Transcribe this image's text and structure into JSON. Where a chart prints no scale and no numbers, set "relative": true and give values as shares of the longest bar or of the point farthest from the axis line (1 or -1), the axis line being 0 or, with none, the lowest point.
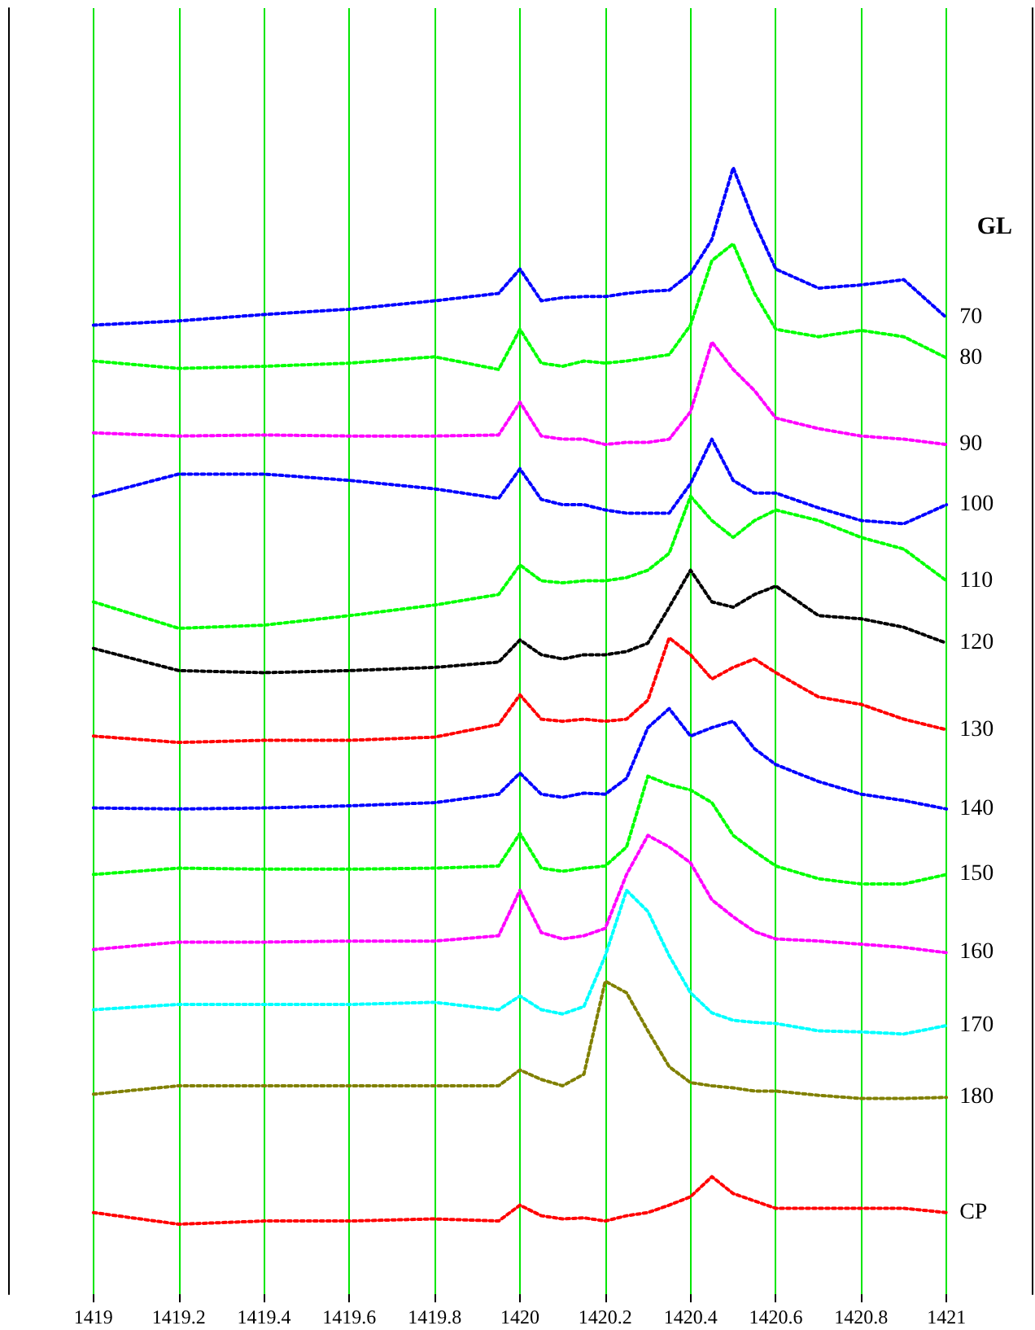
{
  "chart_data": {
    "type": "line",
    "relative": true,
    "legend_title": "GL",
    "line_style": "dotted",
    "grid": "x",
    "xlim": [
      1418.8,
      1421.2
    ],
    "xticks": [
      1419,
      1419.2,
      1419.4,
      1419.6,
      1419.8,
      1420,
      1420.2,
      1420.4,
      1420.6,
      1420.8,
      1421
    ],
    "x": [
      1419,
      1419.2,
      1419.4,
      1419.6,
      1419.8,
      1419.95,
      1420,
      1420.05,
      1420.1,
      1420.15,
      1420.2,
      1420.25,
      1420.3,
      1420.35,
      1420.4,
      1420.45,
      1420.5,
      1420.55,
      1420.6,
      1420.7,
      1420.8,
      1420.9,
      1421
    ],
    "series": [
      {
        "name": "70",
        "color": "#0000ff",
        "values": [
          0.851,
          0.855,
          0.861,
          0.866,
          0.874,
          0.881,
          0.904,
          0.874,
          0.877,
          0.878,
          0.878,
          0.881,
          0.883,
          0.884,
          0.9,
          0.932,
          1,
          0.948,
          0.904,
          0.886,
          0.889,
          0.894,
          0.858
        ]
      },
      {
        "name": "80",
        "color": "#00ff00",
        "values": [
          0.817,
          0.81,
          0.812,
          0.815,
          0.821,
          0.809,
          0.847,
          0.815,
          0.812,
          0.817,
          0.815,
          0.817,
          0.82,
          0.823,
          0.851,
          0.912,
          0.928,
          0.881,
          0.847,
          0.84,
          0.846,
          0.84,
          0.82
        ]
      },
      {
        "name": "90",
        "color": "#ff00ff",
        "values": [
          0.749,
          0.746,
          0.747,
          0.746,
          0.746,
          0.747,
          0.778,
          0.746,
          0.743,
          0.743,
          0.738,
          0.74,
          0.74,
          0.743,
          0.769,
          0.835,
          0.809,
          0.789,
          0.763,
          0.753,
          0.746,
          0.743,
          0.738
        ]
      },
      {
        "name": "100",
        "color": "#0000ff",
        "values": [
          0.689,
          0.71,
          0.71,
          0.704,
          0.696,
          0.687,
          0.715,
          0.686,
          0.681,
          0.681,
          0.676,
          0.673,
          0.673,
          0.673,
          0.701,
          0.743,
          0.704,
          0.692,
          0.692,
          0.678,
          0.666,
          0.663,
          0.681
        ]
      },
      {
        "name": "110",
        "color": "#00ff00",
        "values": [
          0.589,
          0.564,
          0.567,
          0.576,
          0.586,
          0.596,
          0.624,
          0.609,
          0.607,
          0.609,
          0.609,
          0.612,
          0.619,
          0.635,
          0.689,
          0.666,
          0.65,
          0.666,
          0.676,
          0.666,
          0.65,
          0.639,
          0.609
        ]
      },
      {
        "name": "120",
        "color": "#000000",
        "values": [
          0.545,
          0.524,
          0.522,
          0.524,
          0.527,
          0.532,
          0.553,
          0.539,
          0.535,
          0.539,
          0.539,
          0.542,
          0.55,
          0.584,
          0.619,
          0.589,
          0.584,
          0.596,
          0.604,
          0.576,
          0.573,
          0.565,
          0.55
        ]
      },
      {
        "name": "130",
        "color": "#ff0000",
        "values": [
          0.462,
          0.456,
          0.458,
          0.458,
          0.461,
          0.473,
          0.501,
          0.478,
          0.476,
          0.478,
          0.476,
          0.478,
          0.496,
          0.555,
          0.539,
          0.516,
          0.527,
          0.535,
          0.522,
          0.499,
          0.492,
          0.478,
          0.468
        ]
      },
      {
        "name": "140",
        "color": "#0000ff",
        "values": [
          0.394,
          0.393,
          0.394,
          0.396,
          0.399,
          0.407,
          0.427,
          0.407,
          0.404,
          0.408,
          0.407,
          0.422,
          0.47,
          0.488,
          0.462,
          0.47,
          0.476,
          0.45,
          0.435,
          0.419,
          0.407,
          0.401,
          0.393
        ]
      },
      {
        "name": "150",
        "color": "#00ff00",
        "values": [
          0.331,
          0.337,
          0.336,
          0.336,
          0.337,
          0.339,
          0.37,
          0.337,
          0.334,
          0.337,
          0.339,
          0.357,
          0.424,
          0.416,
          0.411,
          0.399,
          0.368,
          0.353,
          0.339,
          0.327,
          0.322,
          0.322,
          0.331
        ]
      },
      {
        "name": "160",
        "color": "#ff00ff",
        "values": [
          0.26,
          0.267,
          0.267,
          0.268,
          0.268,
          0.273,
          0.316,
          0.276,
          0.27,
          0.273,
          0.28,
          0.331,
          0.368,
          0.357,
          0.342,
          0.307,
          0.291,
          0.277,
          0.27,
          0.268,
          0.265,
          0.262,
          0.257
        ]
      },
      {
        "name": "170",
        "color": "#00ffff",
        "values": [
          0.203,
          0.208,
          0.208,
          0.208,
          0.21,
          0.203,
          0.216,
          0.203,
          0.199,
          0.206,
          0.254,
          0.316,
          0.296,
          0.254,
          0.219,
          0.2,
          0.193,
          0.191,
          0.19,
          0.183,
          0.182,
          0.18,
          0.188
        ]
      },
      {
        "name": "180",
        "color": "#808000",
        "values": [
          0.123,
          0.131,
          0.131,
          0.131,
          0.131,
          0.131,
          0.146,
          0.137,
          0.131,
          0.142,
          0.23,
          0.219,
          0.183,
          0.149,
          0.134,
          0.131,
          0.129,
          0.126,
          0.126,
          0.122,
          0.119,
          0.119,
          0.12
        ]
      },
      {
        "name": "CP",
        "color": "#ff0000",
        "values": [
          0.011,
          0,
          0.003,
          0.003,
          0.005,
          0.003,
          0.018,
          0.008,
          0.005,
          0.006,
          0.003,
          0.008,
          0.011,
          0.018,
          0.026,
          0.045,
          0.029,
          0.022,
          0.015,
          0.015,
          0.015,
          0.015,
          0.011
        ]
      }
    ]
  }
}
